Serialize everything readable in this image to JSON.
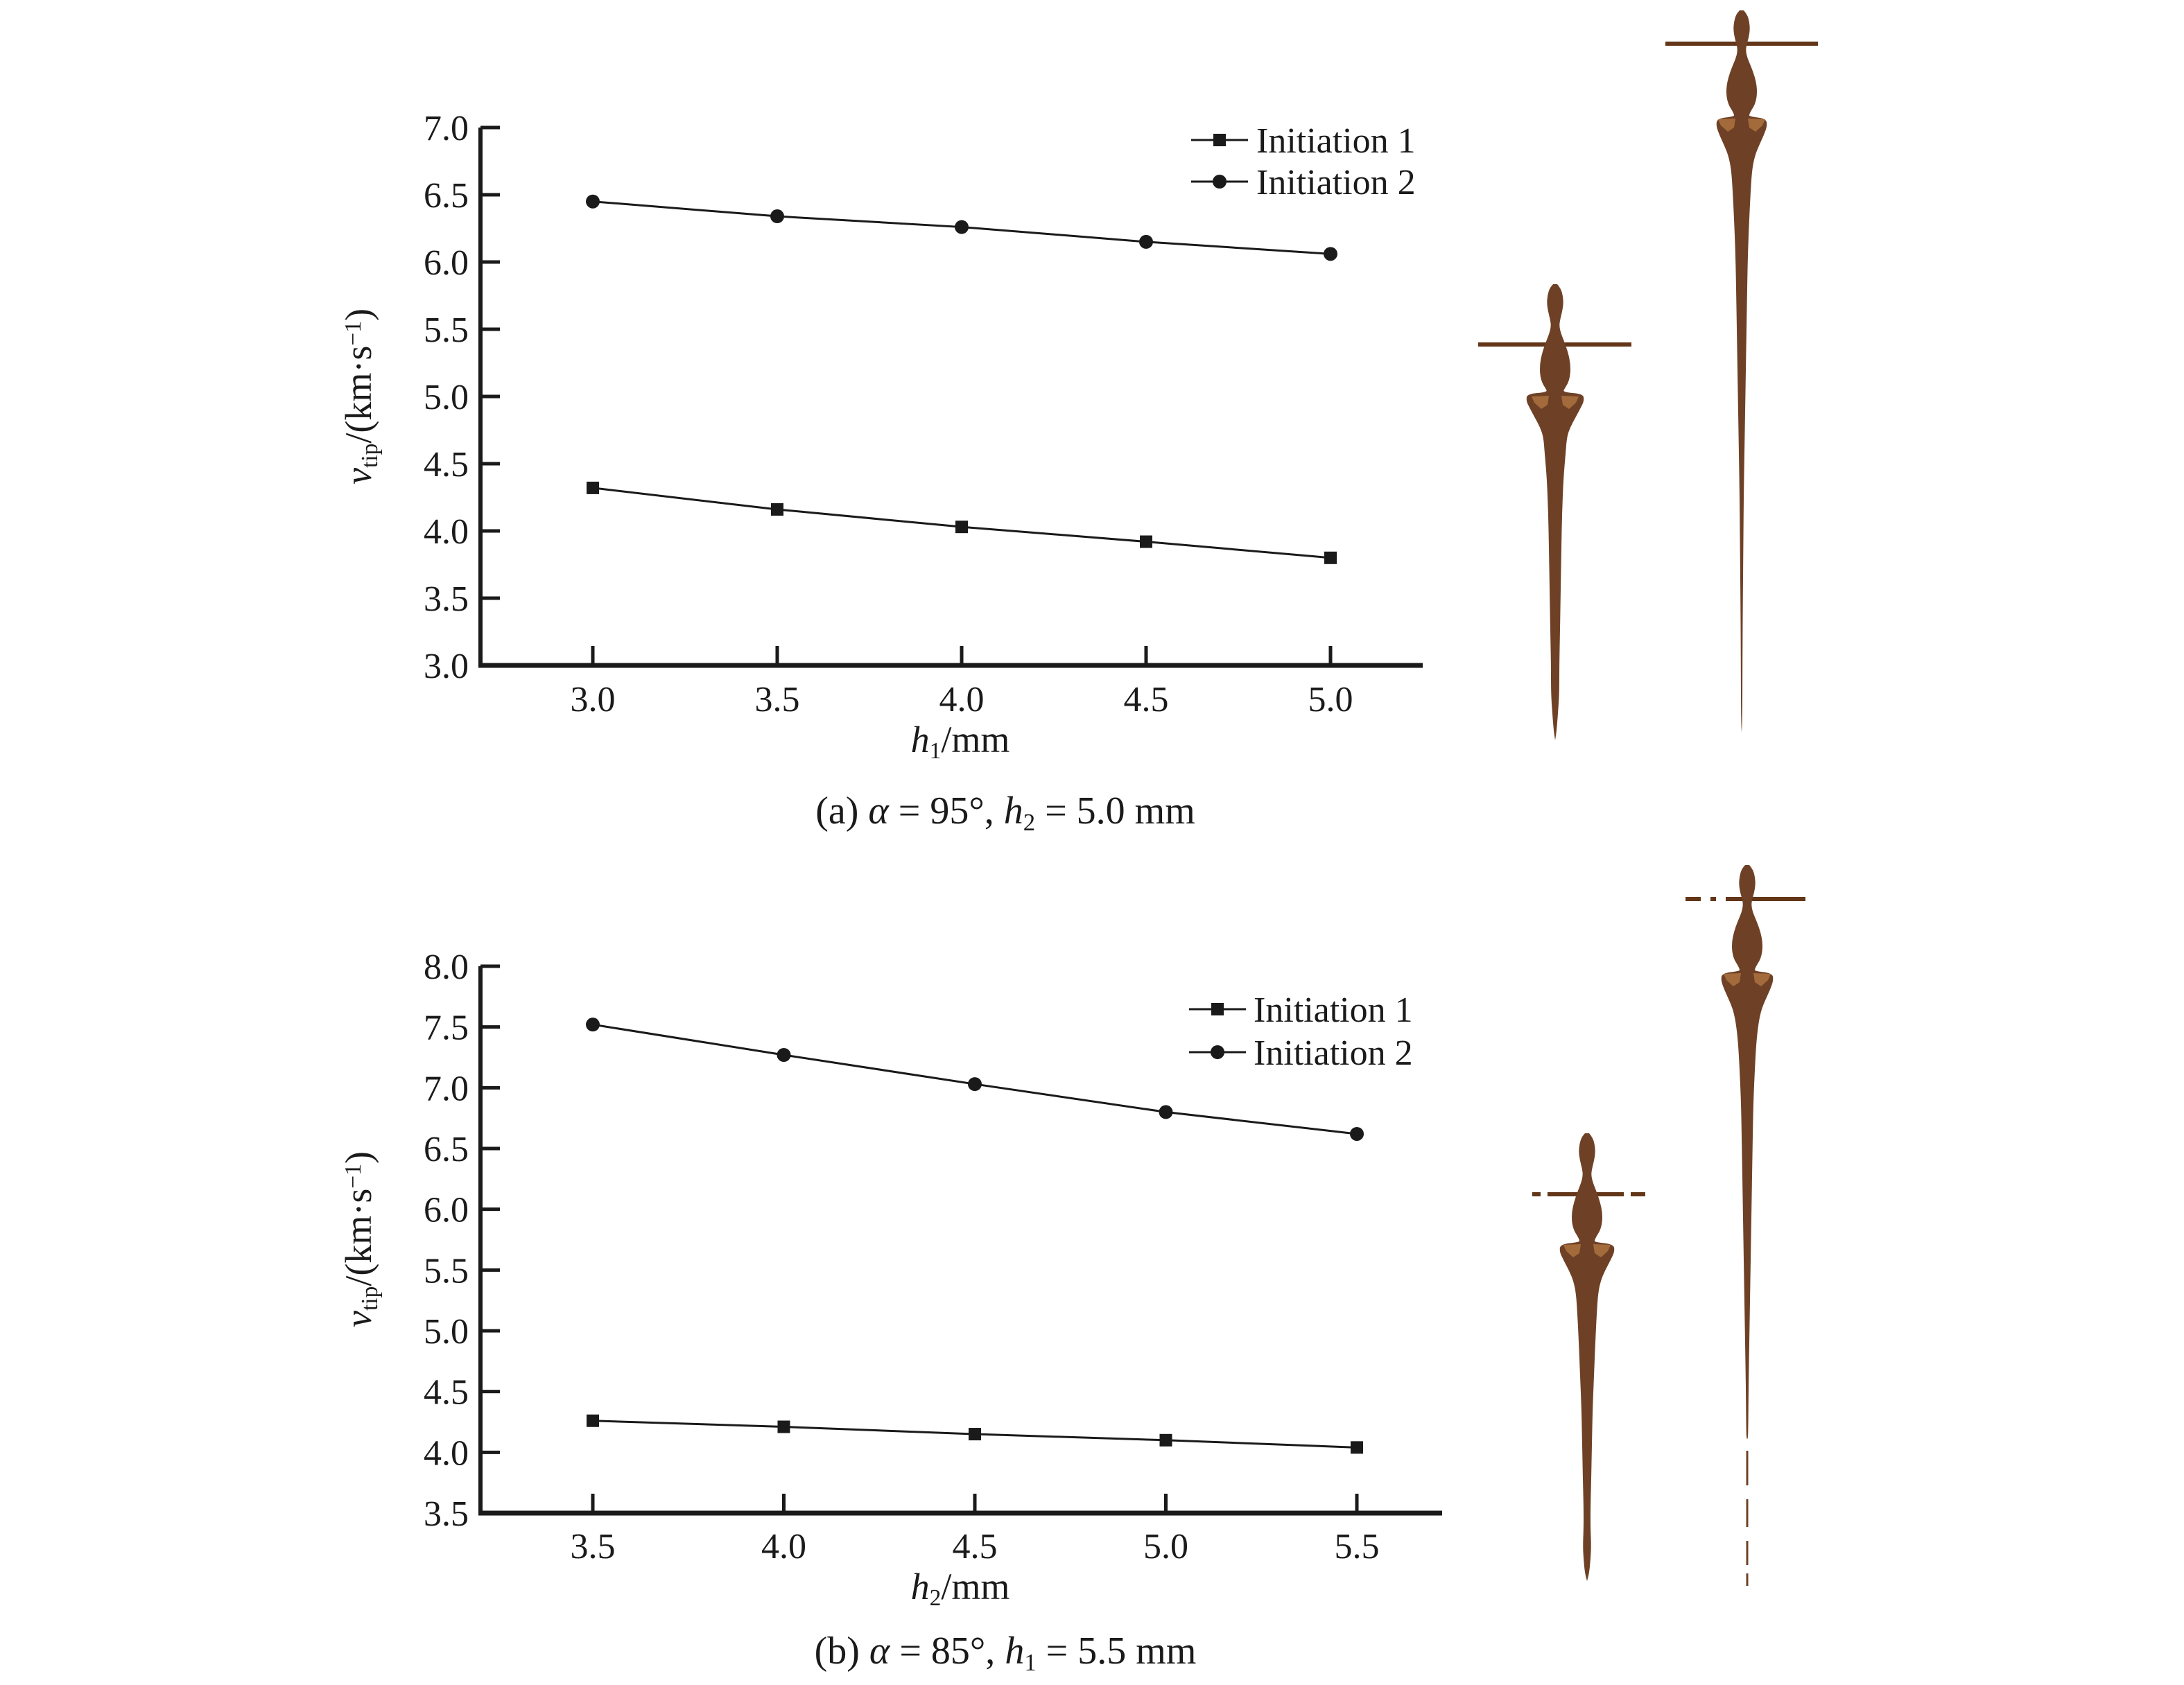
{
  "figure": {
    "background": "#ffffff",
    "text_color": "#1a1a1a",
    "series_color": "#1a1a1a",
    "jet_body_color": "#6e4126",
    "jet_line_color": "#633618",
    "jet_highlight_color": "#a9703f"
  },
  "chart_data": [
    {
      "panel": "a",
      "type": "line",
      "x": [
        3.0,
        3.5,
        4.0,
        4.5,
        5.0
      ],
      "x_tick_labels": [
        "3.0",
        "3.5",
        "4.0",
        "4.5",
        "5.0"
      ],
      "y_tick_labels": [
        "3.0",
        "3.5",
        "4.0",
        "4.5",
        "5.0",
        "5.5",
        "6.0",
        "6.5",
        "7.0"
      ],
      "xlim": [
        2.7,
        5.25
      ],
      "ylim": [
        3.0,
        7.0
      ],
      "xlabel": "h1/mm",
      "ylabel": "vtip/(km·s−1)",
      "grid": false,
      "legend_position": "top-right",
      "series": [
        {
          "name": "Initiation 1",
          "marker": "square",
          "values": [
            4.32,
            4.16,
            4.03,
            3.92,
            3.8
          ]
        },
        {
          "name": "Initiation 2",
          "marker": "circle",
          "values": [
            6.45,
            6.34,
            6.26,
            6.15,
            6.06
          ]
        }
      ],
      "caption": "(a) α = 95°, h2 = 5.0 mm"
    },
    {
      "panel": "b",
      "type": "line",
      "x": [
        3.5,
        4.0,
        4.5,
        5.0,
        5.5
      ],
      "x_tick_labels": [
        "3.5",
        "4.0",
        "4.5",
        "5.0",
        "5.5"
      ],
      "y_tick_labels": [
        "3.5",
        "4.0",
        "4.5",
        "5.0",
        "5.5",
        "6.0",
        "6.5",
        "7.0",
        "7.5",
        "8.0"
      ],
      "xlim": [
        3.2,
        5.75
      ],
      "ylim": [
        3.5,
        8.0
      ],
      "xlabel": "h2/mm",
      "ylabel": "vtip/(km·s−1)",
      "grid": false,
      "legend_position": "top-right",
      "series": [
        {
          "name": "Initiation 1",
          "marker": "square",
          "values": [
            4.26,
            4.21,
            4.15,
            4.1,
            4.04
          ]
        },
        {
          "name": "Initiation 2",
          "marker": "circle",
          "values": [
            7.52,
            7.27,
            7.03,
            6.8,
            6.62
          ]
        }
      ],
      "caption": "(b) α = 85°, h1 = 5.5 mm"
    }
  ],
  "richtext": {
    "ylabel": [
      {
        "t": "v",
        "i": true
      },
      {
        "t": "tip",
        "sub": true
      },
      {
        "t": "/(km·s"
      },
      {
        "t": "−1",
        "sup": true
      },
      {
        "t": ")"
      }
    ],
    "xlabel_a": [
      {
        "t": "h",
        "i": true
      },
      {
        "t": "1",
        "sub": true
      },
      {
        "t": "/mm"
      }
    ],
    "xlabel_b": [
      {
        "t": "h",
        "i": true
      },
      {
        "t": "2",
        "sub": true
      },
      {
        "t": "/mm"
      }
    ],
    "caption_a": [
      {
        "t": "(a) "
      },
      {
        "t": "α",
        "i": true
      },
      {
        "t": " = 95°, "
      },
      {
        "t": "h",
        "i": true
      },
      {
        "t": "2",
        "sub": true
      },
      {
        "t": " = 5.0 mm"
      }
    ],
    "caption_b": [
      {
        "t": "(b) "
      },
      {
        "t": "α",
        "i": true
      },
      {
        "t": " = 85°, "
      },
      {
        "t": "h",
        "i": true
      },
      {
        "t": "1",
        "sub": true
      },
      {
        "t": " = 5.5 mm"
      }
    ]
  }
}
